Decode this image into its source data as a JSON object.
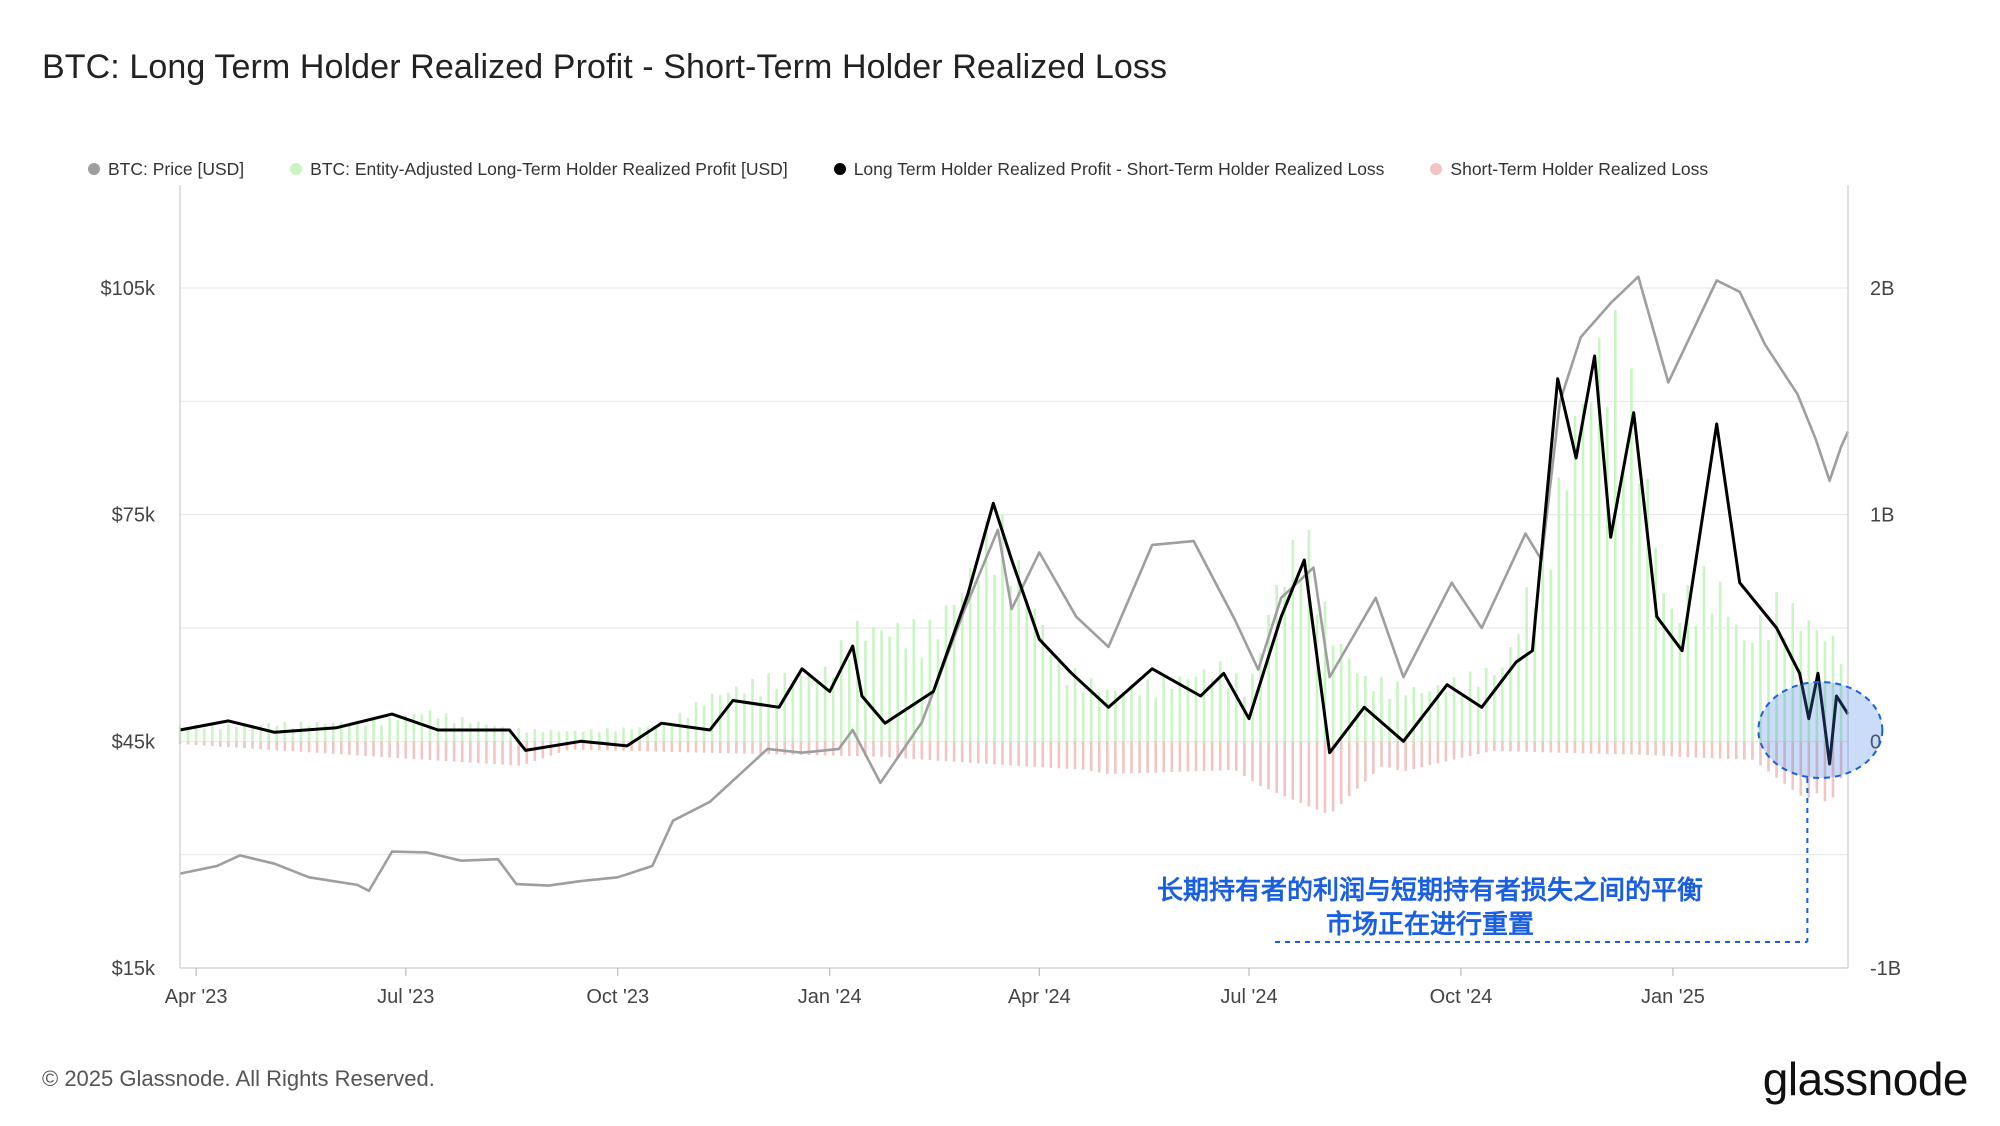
{
  "title": "BTC: Long Term Holder Realized Profit - Short-Term Holder Realized Loss",
  "legend": [
    {
      "label": "BTC: Price [USD]",
      "color": "#9e9e9e"
    },
    {
      "label": "BTC: Entity-Adjusted Long-Term Holder Realized Profit [USD]",
      "color": "#c8f5c2"
    },
    {
      "label": "Long Term Holder Realized Profit - Short-Term Holder Realized Loss",
      "color": "#000000"
    },
    {
      "label": "Short-Term Holder Realized Loss",
      "color": "#f2c4c4"
    }
  ],
  "footer": "© 2025 Glassnode. All Rights Reserved.",
  "brand": "glassnode",
  "annotation": {
    "line1": "长期持有者的利润与短期持有者损失之间的平衡",
    "line2": "市场正在进行重置"
  },
  "colors": {
    "price": "#9e9e9e",
    "ltp": "#c8f5c2",
    "diff": "#000000",
    "stl": "#f2c4c4",
    "annotation": "#1a5fe0"
  },
  "chart_data": {
    "type": "line",
    "x_axis": {
      "ticks": [
        "Apr '23",
        "Jul '23",
        "Oct '23",
        "Jan '24",
        "Apr '24",
        "Jul '24",
        "Oct '24",
        "Jan '25"
      ],
      "range": [
        "2023-03-25",
        "2025-03-18"
      ]
    },
    "y_left": {
      "label": "",
      "ticks": [
        "$105k",
        "$75k",
        "$45k",
        "$15k"
      ],
      "tick_values": [
        105000,
        75000,
        45000,
        15000
      ],
      "range": [
        15000,
        105000
      ]
    },
    "y_right": {
      "label": "",
      "ticks": [
        "2B",
        "1B",
        "0",
        "-1B"
      ],
      "tick_values": [
        2000000000,
        1000000000,
        0,
        -1000000000
      ],
      "range": [
        -1000000000,
        2000000000
      ]
    },
    "grid": true,
    "legend_position": "top",
    "series": [
      {
        "name": "BTC: Price [USD]",
        "axis": "left",
        "style": "line",
        "points": [
          [
            "2023-03-25",
            27500
          ],
          [
            "2023-04-10",
            28500
          ],
          [
            "2023-04-20",
            29900
          ],
          [
            "2023-05-05",
            28800
          ],
          [
            "2023-05-20",
            27000
          ],
          [
            "2023-06-10",
            26000
          ],
          [
            "2023-06-15",
            25200
          ],
          [
            "2023-06-25",
            30400
          ],
          [
            "2023-07-10",
            30300
          ],
          [
            "2023-07-25",
            29200
          ],
          [
            "2023-08-10",
            29400
          ],
          [
            "2023-08-18",
            26100
          ],
          [
            "2023-09-01",
            25900
          ],
          [
            "2023-09-15",
            26500
          ],
          [
            "2023-10-01",
            27000
          ],
          [
            "2023-10-16",
            28500
          ],
          [
            "2023-10-25",
            34500
          ],
          [
            "2023-11-10",
            37000
          ],
          [
            "2023-12-05",
            44000
          ],
          [
            "2023-12-20",
            43500
          ],
          [
            "2024-01-05",
            44000
          ],
          [
            "2024-01-11",
            46500
          ],
          [
            "2024-01-23",
            39500
          ],
          [
            "2024-02-10",
            47500
          ],
          [
            "2024-02-28",
            62000
          ],
          [
            "2024-03-14",
            73000
          ],
          [
            "2024-03-20",
            62500
          ],
          [
            "2024-04-01",
            70000
          ],
          [
            "2024-04-17",
            61500
          ],
          [
            "2024-05-01",
            57500
          ],
          [
            "2024-05-20",
            71000
          ],
          [
            "2024-06-07",
            71500
          ],
          [
            "2024-06-25",
            61000
          ],
          [
            "2024-07-05",
            54500
          ],
          [
            "2024-07-15",
            64000
          ],
          [
            "2024-07-29",
            68000
          ],
          [
            "2024-08-05",
            53500
          ],
          [
            "2024-08-25",
            64000
          ],
          [
            "2024-09-06",
            53500
          ],
          [
            "2024-09-27",
            66000
          ],
          [
            "2024-10-10",
            60000
          ],
          [
            "2024-10-29",
            72500
          ],
          [
            "2024-11-05",
            69000
          ],
          [
            "2024-11-13",
            90000
          ],
          [
            "2024-11-22",
            98500
          ],
          [
            "2024-12-05",
            103000
          ],
          [
            "2024-12-17",
            106500
          ],
          [
            "2024-12-30",
            92500
          ],
          [
            "2025-01-20",
            106000
          ],
          [
            "2025-01-30",
            104500
          ],
          [
            "2025-02-10",
            97500
          ],
          [
            "2025-02-24",
            91000
          ],
          [
            "2025-03-04",
            85000
          ],
          [
            "2025-03-10",
            79500
          ],
          [
            "2025-03-15",
            84000
          ],
          [
            "2025-03-18",
            86000
          ]
        ]
      },
      {
        "name": "BTC: Entity-Adjusted Long-Term Holder Realized Profit [USD]",
        "axis": "right",
        "style": "bars",
        "points": [
          [
            "2023-03-25",
            60000000.0
          ],
          [
            "2023-05-01",
            70000000.0
          ],
          [
            "2023-06-20",
            80000000.0
          ],
          [
            "2023-07-10",
            120000000.0
          ],
          [
            "2023-08-15",
            50000000.0
          ],
          [
            "2023-09-10",
            40000000.0
          ],
          [
            "2023-10-20",
            60000000.0
          ],
          [
            "2023-11-10",
            180000000.0
          ],
          [
            "2023-12-05",
            250000000.0
          ],
          [
            "2023-12-30",
            280000000.0
          ],
          [
            "2024-01-12",
            450000000.0
          ],
          [
            "2024-02-15",
            450000000.0
          ],
          [
            "2024-03-01",
            650000000.0
          ],
          [
            "2024-03-13",
            900000000.0
          ],
          [
            "2024-03-20",
            750000000.0
          ],
          [
            "2024-04-10",
            300000000.0
          ],
          [
            "2024-05-01",
            200000000.0
          ],
          [
            "2024-06-01",
            250000000.0
          ],
          [
            "2024-06-20",
            300000000.0
          ],
          [
            "2024-07-01",
            200000000.0
          ],
          [
            "2024-07-12",
            600000000.0
          ],
          [
            "2024-07-25",
            850000000.0
          ],
          [
            "2024-08-05",
            450000000.0
          ],
          [
            "2024-08-20",
            250000000.0
          ],
          [
            "2024-09-15",
            200000000.0
          ],
          [
            "2024-10-20",
            300000000.0
          ],
          [
            "2024-11-13",
            1000000000.0
          ],
          [
            "2024-11-20",
            1300000000.0
          ],
          [
            "2024-12-05",
            1650000000.0
          ],
          [
            "2024-12-15",
            1350000000.0
          ],
          [
            "2024-12-30",
            500000000.0
          ],
          [
            "2025-01-15",
            650000000.0
          ],
          [
            "2025-01-22",
            600000000.0
          ],
          [
            "2025-02-01",
            400000000.0
          ],
          [
            "2025-02-15",
            550000000.0
          ],
          [
            "2025-02-25",
            500000000.0
          ],
          [
            "2025-03-05",
            450000000.0
          ],
          [
            "2025-03-18",
            350000000.0
          ]
        ]
      },
      {
        "name": "Long Term Holder Realized Profit - Short-Term Holder Realized Loss",
        "axis": "right",
        "style": "line",
        "points": [
          [
            "2023-03-25",
            50000000.0
          ],
          [
            "2023-04-15",
            90000000.0
          ],
          [
            "2023-05-05",
            40000000.0
          ],
          [
            "2023-06-01",
            60000000.0
          ],
          [
            "2023-06-25",
            120000000.0
          ],
          [
            "2023-07-15",
            50000000.0
          ],
          [
            "2023-08-15",
            50000000.0
          ],
          [
            "2023-08-22",
            -40000000.0
          ],
          [
            "2023-09-15",
            0.0
          ],
          [
            "2023-10-05",
            -20000000.0
          ],
          [
            "2023-10-20",
            80000000.0
          ],
          [
            "2023-11-10",
            50000000.0
          ],
          [
            "2023-11-20",
            180000000.0
          ],
          [
            "2023-12-10",
            150000000.0
          ],
          [
            "2023-12-20",
            320000000.0
          ],
          [
            "2024-01-01",
            220000000.0
          ],
          [
            "2024-01-11",
            420000000.0
          ],
          [
            "2024-01-15",
            200000000.0
          ],
          [
            "2024-01-25",
            80000000.0
          ],
          [
            "2024-02-15",
            220000000.0
          ],
          [
            "2024-03-01",
            650000000.0
          ],
          [
            "2024-03-12",
            1050000000.0
          ],
          [
            "2024-03-20",
            800000000.0
          ],
          [
            "2024-04-01",
            450000000.0
          ],
          [
            "2024-04-15",
            300000000.0
          ],
          [
            "2024-05-01",
            150000000.0
          ],
          [
            "2024-05-20",
            320000000.0
          ],
          [
            "2024-06-10",
            200000000.0
          ],
          [
            "2024-06-20",
            300000000.0
          ],
          [
            "2024-07-01",
            100000000.0
          ],
          [
            "2024-07-15",
            550000000.0
          ],
          [
            "2024-07-25",
            800000000.0
          ],
          [
            "2024-08-05",
            -50000000.0
          ],
          [
            "2024-08-20",
            150000000.0
          ],
          [
            "2024-09-06",
            0.0
          ],
          [
            "2024-09-25",
            250000000.0
          ],
          [
            "2024-10-10",
            150000000.0
          ],
          [
            "2024-10-25",
            350000000.0
          ],
          [
            "2024-11-01",
            400000000.0
          ],
          [
            "2024-11-12",
            1600000000.0
          ],
          [
            "2024-11-20",
            1250000000.0
          ],
          [
            "2024-11-28",
            1700000000.0
          ],
          [
            "2024-12-05",
            900000000.0
          ],
          [
            "2024-12-15",
            1450000000.0
          ],
          [
            "2024-12-25",
            550000000.0
          ],
          [
            "2025-01-05",
            400000000.0
          ],
          [
            "2025-01-20",
            1400000000.0
          ],
          [
            "2025-01-30",
            700000000.0
          ],
          [
            "2025-02-15",
            500000000.0
          ],
          [
            "2025-02-25",
            300000000.0
          ],
          [
            "2025-03-01",
            100000000.0
          ],
          [
            "2025-03-05",
            300000000.0
          ],
          [
            "2025-03-10",
            -100000000.0
          ],
          [
            "2025-03-13",
            200000000.0
          ],
          [
            "2025-03-18",
            120000000.0
          ]
        ]
      },
      {
        "name": "Short-Term Holder Realized Loss",
        "axis": "right",
        "style": "bars",
        "points": [
          [
            "2023-03-25",
            -10000000.0
          ],
          [
            "2023-08-20",
            -90000000.0
          ],
          [
            "2023-09-10",
            -30000000.0
          ],
          [
            "2024-01-22",
            -60000000.0
          ],
          [
            "2024-04-20",
            -120000000.0
          ],
          [
            "2024-05-01",
            -140000000.0
          ],
          [
            "2024-06-25",
            -130000000.0
          ],
          [
            "2024-07-05",
            -200000000.0
          ],
          [
            "2024-08-05",
            -350000000.0
          ],
          [
            "2024-08-28",
            -120000000.0
          ],
          [
            "2024-09-06",
            -150000000.0
          ],
          [
            "2024-10-15",
            -50000000.0
          ],
          [
            "2024-12-20",
            -80000000.0
          ],
          [
            "2025-01-10",
            -100000000.0
          ],
          [
            "2025-02-05",
            -120000000.0
          ],
          [
            "2025-02-28",
            -400000000.0
          ],
          [
            "2025-03-04",
            -350000000.0
          ],
          [
            "2025-03-10",
            -450000000.0
          ],
          [
            "2025-03-18",
            -150000000.0
          ]
        ]
      }
    ]
  }
}
